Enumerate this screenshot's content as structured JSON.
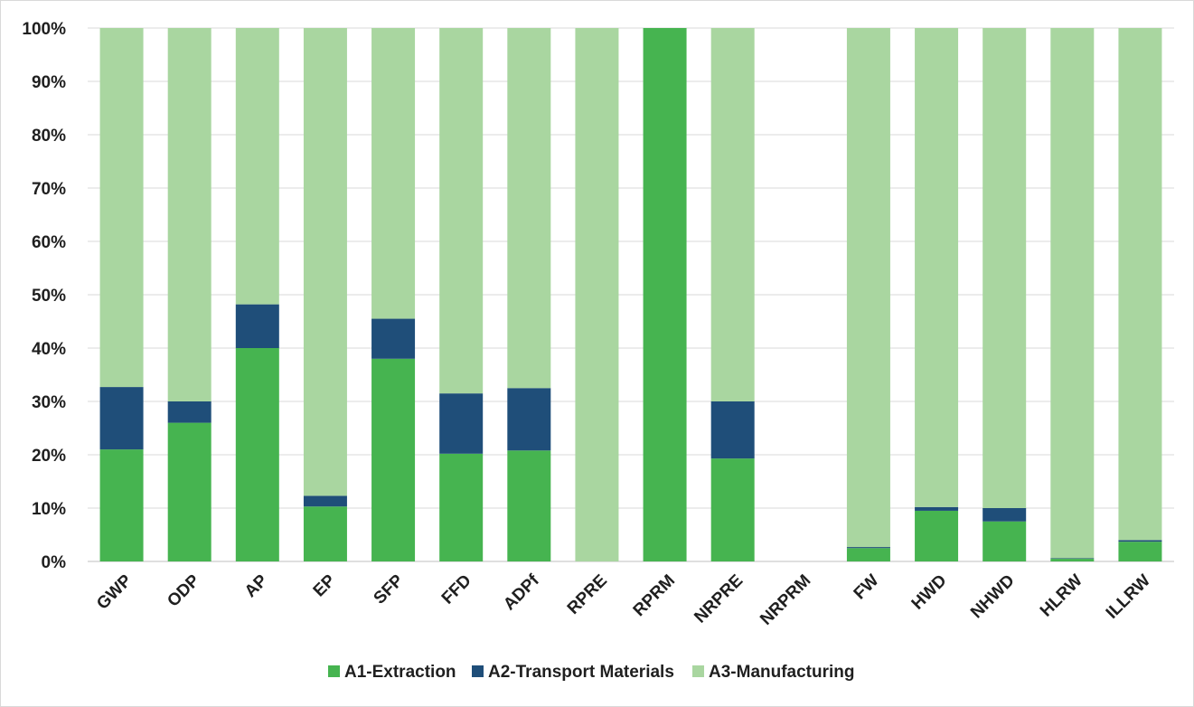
{
  "chart_data": {
    "type": "bar",
    "stacked": true,
    "categories": [
      "GWP",
      "ODP",
      "AP",
      "EP",
      "SFP",
      "FFD",
      "ADPf",
      "RPRE",
      "RPRM",
      "NRPRE",
      "NRPRM",
      "FW",
      "HWD",
      "NHWD",
      "HLRW",
      "ILLRW"
    ],
    "series": [
      {
        "name": "A1-Extraction",
        "color": "#46b450",
        "values": [
          21.0,
          26.0,
          40.0,
          10.3,
          38.0,
          20.2,
          20.8,
          0.0,
          100.0,
          19.3,
          0.0,
          2.5,
          9.5,
          7.5,
          0.5,
          3.7
        ]
      },
      {
        "name": "A2-Transport Materials",
        "color": "#1f4e79",
        "values": [
          11.7,
          4.0,
          8.2,
          2.0,
          7.5,
          11.3,
          11.7,
          0.0,
          0.0,
          10.7,
          0.0,
          0.2,
          0.7,
          2.5,
          0.1,
          0.3
        ]
      },
      {
        "name": "A3-Manufacturing",
        "color": "#a9d6a0",
        "values": [
          67.3,
          70.0,
          51.8,
          87.7,
          54.5,
          68.5,
          67.5,
          100.0,
          0.0,
          70.0,
          0.0,
          97.3,
          89.8,
          90.0,
          99.4,
          96.0
        ]
      }
    ],
    "y_ticks": [
      "0%",
      "10%",
      "20%",
      "30%",
      "40%",
      "50%",
      "60%",
      "70%",
      "80%",
      "90%",
      "100%"
    ],
    "ylim": [
      0,
      100
    ],
    "grid": true,
    "legend_position": "bottom"
  }
}
